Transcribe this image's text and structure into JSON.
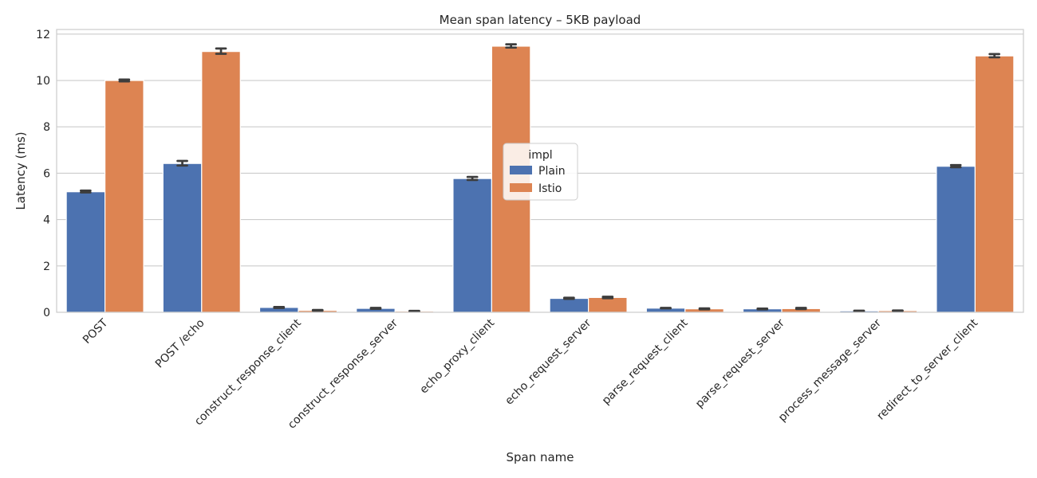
{
  "chart_data": {
    "type": "bar",
    "title": "Mean span latency – 5KB payload",
    "xlabel": "Span name",
    "ylabel": "Latency (ms)",
    "ylim": [
      0,
      12.2
    ],
    "yticks": [
      0,
      2,
      4,
      6,
      8,
      10,
      12
    ],
    "grid": true,
    "legend": {
      "title": "impl",
      "placement": "center"
    },
    "categories": [
      "POST",
      "POST /echo",
      "construct_response_client",
      "construct_response_server",
      "echo_proxy_client",
      "echo_request_server",
      "parse_request_client",
      "parse_request_server",
      "process_message_server",
      "redirect_to_server_client"
    ],
    "series": [
      {
        "name": "Plain",
        "color": "#4c72b0",
        "values": [
          5.2,
          6.42,
          0.21,
          0.17,
          5.77,
          0.6,
          0.18,
          0.15,
          0.06,
          6.3
        ],
        "err_low": [
          5.17,
          6.33,
          0.19,
          0.15,
          5.71,
          0.58,
          0.17,
          0.13,
          0.05,
          6.26
        ],
        "err_high": [
          5.25,
          6.53,
          0.23,
          0.19,
          5.84,
          0.63,
          0.19,
          0.16,
          0.07,
          6.35
        ]
      },
      {
        "name": "Istio",
        "color": "#dd8452",
        "values": [
          10.0,
          11.25,
          0.08,
          0.05,
          11.48,
          0.64,
          0.15,
          0.16,
          0.07,
          11.06
        ],
        "err_low": [
          9.96,
          11.15,
          0.07,
          0.04,
          11.42,
          0.61,
          0.13,
          0.14,
          0.06,
          11.0
        ],
        "err_high": [
          10.04,
          11.38,
          0.1,
          0.06,
          11.56,
          0.67,
          0.17,
          0.19,
          0.08,
          11.14
        ]
      }
    ],
    "error_bar_color": "#3d3d3d"
  }
}
